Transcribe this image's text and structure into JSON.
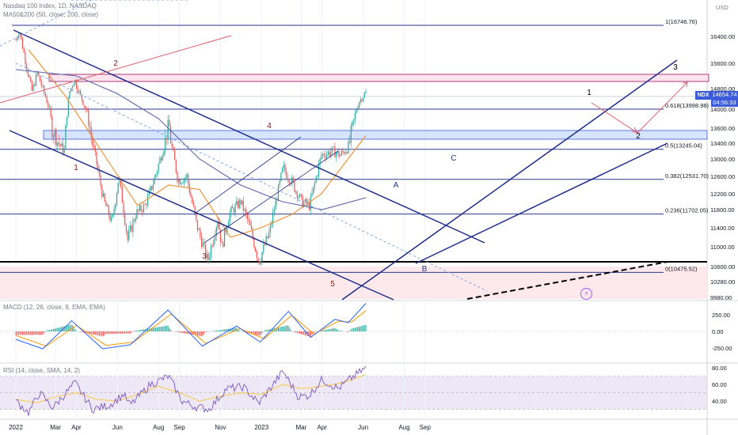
{
  "legends": {
    "main": "Nasdaq 100 Index, 1D, NASDAQ",
    "ma": "MA50&200 (50, close, 200, close)",
    "macd": "MACD (12, 26, close, 9, EMA, EMA)",
    "rsi": "RSI (14, close, SMA, 14, 2)"
  },
  "ticker": "NDX",
  "price": {
    "value": "14654.74",
    "countdown": "04:56:33"
  },
  "currency": "USD",
  "colors": {
    "candle_up": "#26a69a",
    "candle_down": "#ef5350",
    "channel": "#1e2d8a",
    "ma50": "#f28c28",
    "ma200": "#5b64a8",
    "red_trend": "#e05a6a",
    "macd_line": "#2962ff",
    "signal_line": "#ff9800",
    "rsi_line": "#7e57c2",
    "rsi_band": "#ede7f6",
    "zone_pink": "#fde9ec",
    "zone_blue": "#d6e4ff",
    "label_red": "#8b1a1a",
    "label_blue": "#1e3a8a",
    "label_black": "#000000"
  },
  "chart_data": [
    {
      "type": "candlestick",
      "title": "Nasdaq 100 Index, 1D, NASDAQ",
      "ylim": [
        9900,
        16900
      ],
      "y_ticks": [
        "16400.00",
        "15600.00",
        "14800.00",
        "14000.00",
        "13600.00",
        "13400.00",
        "13000.00",
        "12600.00",
        "12200.00",
        "11800.00",
        "11400.00",
        "11000.00",
        "10600.00",
        "10280.00",
        "9980.00"
      ],
      "x_ticks": [
        "2022",
        "Mar",
        "Apr",
        "Jun",
        "Aug",
        "Sep",
        "Nov",
        "2023",
        "Mar",
        "Apr",
        "Jun",
        "Aug",
        "Sep"
      ],
      "close_path": [
        [
          "2022-01-01",
          16300
        ],
        [
          "2022-01-06",
          16600
        ],
        [
          "2022-01-14",
          15800
        ],
        [
          "2022-01-25",
          14700
        ],
        [
          "2022-02-02",
          15300
        ],
        [
          "2022-02-14",
          14500
        ],
        [
          "2022-02-24",
          13600
        ],
        [
          "2022-03-14",
          13200
        ],
        [
          "2022-03-22",
          14700
        ],
        [
          "2022-03-29",
          15100
        ],
        [
          "2022-04-12",
          14200
        ],
        [
          "2022-04-26",
          13300
        ],
        [
          "2022-05-12",
          12000
        ],
        [
          "2022-05-24",
          11500
        ],
        [
          "2022-06-03",
          12600
        ],
        [
          "2022-06-16",
          11150
        ],
        [
          "2022-06-28",
          11700
        ],
        [
          "2022-07-12",
          11900
        ],
        [
          "2022-07-27",
          12600
        ],
        [
          "2022-08-16",
          13700
        ],
        [
          "2022-08-30",
          12500
        ],
        [
          "2022-09-12",
          12600
        ],
        [
          "2022-09-26",
          11500
        ],
        [
          "2022-10-13",
          10700
        ],
        [
          "2022-10-28",
          11600
        ],
        [
          "2022-11-03",
          11000
        ],
        [
          "2022-11-14",
          11700
        ],
        [
          "2022-12-01",
          12000
        ],
        [
          "2022-12-15",
          11400
        ],
        [
          "2022-12-28",
          10700
        ],
        [
          "2023-01-13",
          11300
        ],
        [
          "2023-02-02",
          12800
        ],
        [
          "2023-02-14",
          12500
        ],
        [
          "2023-03-02",
          12000
        ],
        [
          "2023-03-13",
          11900
        ],
        [
          "2023-03-31",
          13100
        ],
        [
          "2023-04-17",
          13200
        ],
        [
          "2023-04-28",
          13100
        ],
        [
          "2023-05-10",
          13300
        ],
        [
          "2023-05-19",
          13800
        ],
        [
          "2023-05-26",
          14300
        ],
        [
          "2023-06-05",
          14654.74
        ]
      ],
      "overlays": {
        "ma50_path": [
          [
            "2022-01-20",
            16000
          ],
          [
            "2022-03-16",
            14500
          ],
          [
            "2022-05-16",
            13000
          ],
          [
            "2022-07-01",
            11900
          ],
          [
            "2022-08-16",
            12400
          ],
          [
            "2022-10-01",
            12300
          ],
          [
            "2022-11-16",
            11200
          ],
          [
            "2022-12-31",
            11400
          ],
          [
            "2023-02-16",
            11700
          ],
          [
            "2023-03-31",
            12200
          ],
          [
            "2023-06-05",
            13500
          ]
        ],
        "ma200_path": [
          [
            "2022-01-01",
            15400
          ],
          [
            "2022-04-01",
            15200
          ],
          [
            "2022-06-01",
            14600
          ],
          [
            "2022-08-01",
            13800
          ],
          [
            "2022-10-01",
            13000
          ],
          [
            "2022-12-01",
            12400
          ],
          [
            "2023-02-01",
            12000
          ],
          [
            "2023-04-01",
            11800
          ],
          [
            "2023-06-05",
            12100
          ]
        ]
      },
      "fibonacci": [
        {
          "label": "1(16746.76)",
          "value": 16746.76
        },
        {
          "label": "0.618(13998.98)",
          "value": 13998.98
        },
        {
          "label": "0.5(13245.04)",
          "value": 13245.04
        },
        {
          "label": "0.382(12531.70)",
          "value": 12531.7
        },
        {
          "label": "0.236(11702.05)",
          "value": 11702.05
        },
        {
          "label": "0(10475.52)",
          "value": 10475.52
        }
      ],
      "wave_labels": [
        {
          "text": "1",
          "color": "red"
        },
        {
          "text": "2",
          "color": "red"
        },
        {
          "text": "3",
          "color": "red"
        },
        {
          "text": "4",
          "color": "red"
        },
        {
          "text": "5",
          "color": "red"
        },
        {
          "text": "A",
          "color": "blue"
        },
        {
          "text": "B",
          "color": "blue"
        },
        {
          "text": "C",
          "color": "blue"
        },
        {
          "text": "1",
          "color": "black"
        },
        {
          "text": "2",
          "color": "black"
        },
        {
          "text": "3",
          "color": "black"
        }
      ],
      "last_price": 14654.74
    },
    {
      "type": "line",
      "title": "MACD (12, 26, close, 9, EMA, EMA)",
      "y_ticks": [
        "250.00",
        "0.00",
        "-250.00"
      ],
      "ylim": [
        -450,
        450
      ],
      "series": [
        {
          "name": "MACD",
          "path": [
            [
              "2022-01-01",
              -120
            ],
            [
              "2022-02-10",
              -260
            ],
            [
              "2022-03-25",
              160
            ],
            [
              "2022-05-10",
              -260
            ],
            [
              "2022-06-20",
              -200
            ],
            [
              "2022-08-15",
              320
            ],
            [
              "2022-10-05",
              -220
            ],
            [
              "2022-11-25",
              80
            ],
            [
              "2022-12-30",
              -160
            ],
            [
              "2023-02-10",
              300
            ],
            [
              "2023-03-15",
              -90
            ],
            [
              "2023-04-20",
              180
            ],
            [
              "2023-05-10",
              130
            ],
            [
              "2023-06-05",
              420
            ]
          ]
        },
        {
          "name": "Signal",
          "path": [
            [
              "2022-01-01",
              -60
            ],
            [
              "2022-02-15",
              -220
            ],
            [
              "2022-04-01",
              90
            ],
            [
              "2022-05-15",
              -210
            ],
            [
              "2022-06-25",
              -160
            ],
            [
              "2022-08-20",
              260
            ],
            [
              "2022-10-10",
              -180
            ],
            [
              "2022-11-30",
              40
            ],
            [
              "2023-01-05",
              -110
            ],
            [
              "2023-02-15",
              240
            ],
            [
              "2023-03-20",
              -40
            ],
            [
              "2023-04-25",
              150
            ],
            [
              "2023-05-15",
              140
            ],
            [
              "2023-06-05",
              310
            ]
          ]
        }
      ]
    },
    {
      "type": "line",
      "title": "RSI (14, close, SMA, 14, 2)",
      "y_ticks": [
        "80.00",
        "60.00",
        "40.00"
      ],
      "ylim": [
        20,
        85
      ],
      "series": [
        {
          "name": "RSI",
          "path": [
            [
              "2022-01-01",
              40
            ],
            [
              "2022-01-20",
              26
            ],
            [
              "2022-02-05",
              50
            ],
            [
              "2022-02-25",
              32
            ],
            [
              "2022-03-30",
              62
            ],
            [
              "2022-04-25",
              30
            ],
            [
              "2022-05-20",
              35
            ],
            [
              "2022-06-10",
              48
            ],
            [
              "2022-06-20",
              35
            ],
            [
              "2022-07-20",
              60
            ],
            [
              "2022-08-16",
              70
            ],
            [
              "2022-09-05",
              40
            ],
            [
              "2022-09-25",
              33
            ],
            [
              "2022-10-15",
              30
            ],
            [
              "2022-11-10",
              55
            ],
            [
              "2022-12-05",
              57
            ],
            [
              "2022-12-28",
              37
            ],
            [
              "2023-02-02",
              76
            ],
            [
              "2023-02-25",
              45
            ],
            [
              "2023-03-13",
              47
            ],
            [
              "2023-04-01",
              66
            ],
            [
              "2023-04-25",
              55
            ],
            [
              "2023-05-15",
              68
            ],
            [
              "2023-06-05",
              80
            ]
          ]
        },
        {
          "name": "RSI-based MA",
          "path": [
            [
              "2022-01-01",
              42
            ],
            [
              "2022-02-01",
              38
            ],
            [
              "2022-03-01",
              45
            ],
            [
              "2022-04-01",
              50
            ],
            [
              "2022-05-01",
              42
            ],
            [
              "2022-06-01",
              40
            ],
            [
              "2022-07-01",
              48
            ],
            [
              "2022-08-01",
              58
            ],
            [
              "2022-09-01",
              50
            ],
            [
              "2022-10-01",
              40
            ],
            [
              "2022-11-01",
              46
            ],
            [
              "2022-12-01",
              50
            ],
            [
              "2023-01-01",
              48
            ],
            [
              "2023-02-01",
              60
            ],
            [
              "2023-03-01",
              55
            ],
            [
              "2023-04-01",
              58
            ],
            [
              "2023-05-01",
              62
            ],
            [
              "2023-06-05",
              72
            ]
          ]
        }
      ],
      "bands": [
        70,
        50,
        30
      ]
    }
  ]
}
